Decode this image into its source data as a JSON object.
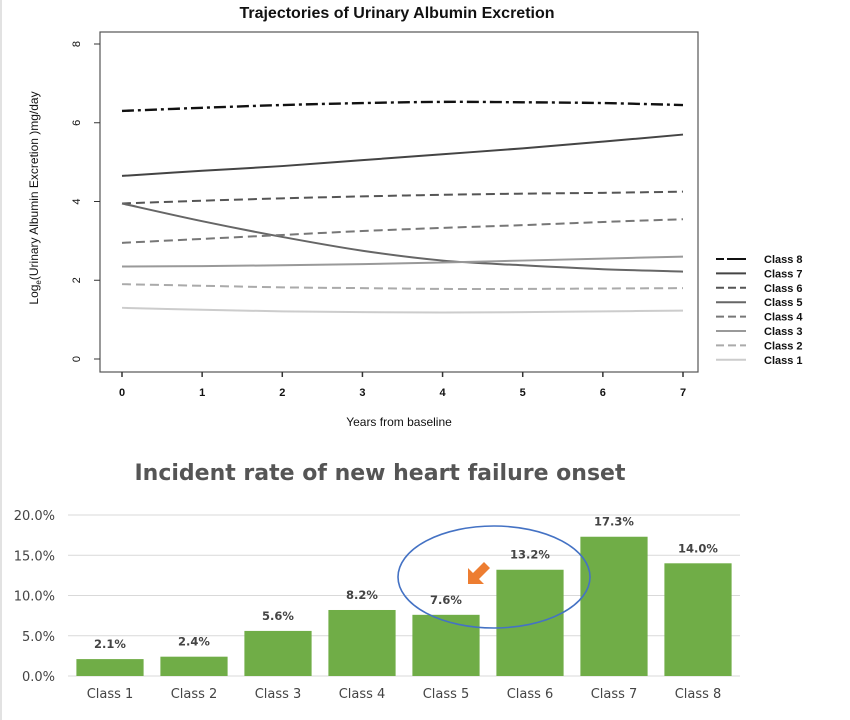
{
  "chart_data": [
    {
      "type": "line",
      "title": "Trajectories of Urinary Albumin Excretion",
      "xlabel": "Years from baseline",
      "ylabel_prefix": "Log",
      "ylabel_sub": "e",
      "ylabel_rest": "(Urinary Albumin Excretion )mg/day",
      "xlim": [
        0,
        7
      ],
      "ylim": [
        0,
        8
      ],
      "x_ticks": [
        "0",
        "1",
        "2",
        "3",
        "4",
        "5",
        "6",
        "7"
      ],
      "y_ticks": [
        "0",
        "2",
        "4",
        "6",
        "8"
      ],
      "grid": false,
      "legend_position": "right",
      "x": [
        0,
        1,
        2,
        3,
        4,
        5,
        6,
        7
      ],
      "series": [
        {
          "name": "Class 8",
          "color": "#111111",
          "dash": "long-dash-dot",
          "values": [
            6.3,
            6.38,
            6.45,
            6.5,
            6.53,
            6.52,
            6.5,
            6.45
          ]
        },
        {
          "name": "Class 7",
          "color": "#444444",
          "dash": "solid",
          "values": [
            4.65,
            4.78,
            4.9,
            5.05,
            5.2,
            5.35,
            5.52,
            5.7
          ]
        },
        {
          "name": "Class 6",
          "color": "#555555",
          "dash": "dashed",
          "values": [
            3.95,
            4.02,
            4.08,
            4.13,
            4.17,
            4.2,
            4.22,
            4.25
          ]
        },
        {
          "name": "Class 5",
          "color": "#666666",
          "dash": "solid",
          "values": [
            3.95,
            3.5,
            3.1,
            2.75,
            2.5,
            2.38,
            2.28,
            2.22
          ]
        },
        {
          "name": "Class 4",
          "color": "#777777",
          "dash": "dashed",
          "values": [
            2.95,
            3.05,
            3.15,
            3.25,
            3.33,
            3.4,
            3.48,
            3.55
          ]
        },
        {
          "name": "Class 3",
          "color": "#999999",
          "dash": "solid",
          "values": [
            2.35,
            2.36,
            2.38,
            2.41,
            2.45,
            2.5,
            2.55,
            2.6
          ]
        },
        {
          "name": "Class 2",
          "color": "#aaaaaa",
          "dash": "dashed",
          "values": [
            1.9,
            1.86,
            1.82,
            1.8,
            1.78,
            1.78,
            1.79,
            1.8
          ]
        },
        {
          "name": "Class 1",
          "color": "#cccccc",
          "dash": "solid",
          "values": [
            1.3,
            1.25,
            1.21,
            1.19,
            1.18,
            1.19,
            1.21,
            1.23
          ]
        }
      ]
    },
    {
      "type": "bar",
      "title": "Incident rate of new heart failure onset",
      "categories": [
        "Class 1",
        "Class 2",
        "Class 3",
        "Class 4",
        "Class 5",
        "Class 6",
        "Class 7",
        "Class 8"
      ],
      "values": [
        2.1,
        2.4,
        5.6,
        8.2,
        7.6,
        13.2,
        17.3,
        14.0
      ],
      "data_labels": [
        "2.1%",
        "2.4%",
        "5.6%",
        "8.2%",
        "7.6%",
        "13.2%",
        "17.3%",
        "14.0%"
      ],
      "y_ticks": [
        "0.0%",
        "5.0%",
        "10.0%",
        "15.0%",
        "20.0%"
      ],
      "ylim": [
        0,
        20
      ],
      "xlabel": "",
      "ylabel": "",
      "grid": true,
      "bar_color": "#70ad47",
      "annotations": [
        {
          "type": "ellipse",
          "color": "#4472c4",
          "highlights": [
            "Class 5",
            "Class 6"
          ]
        },
        {
          "type": "arrow",
          "color": "#ed7d31",
          "points_to": "Class 5"
        }
      ]
    }
  ]
}
